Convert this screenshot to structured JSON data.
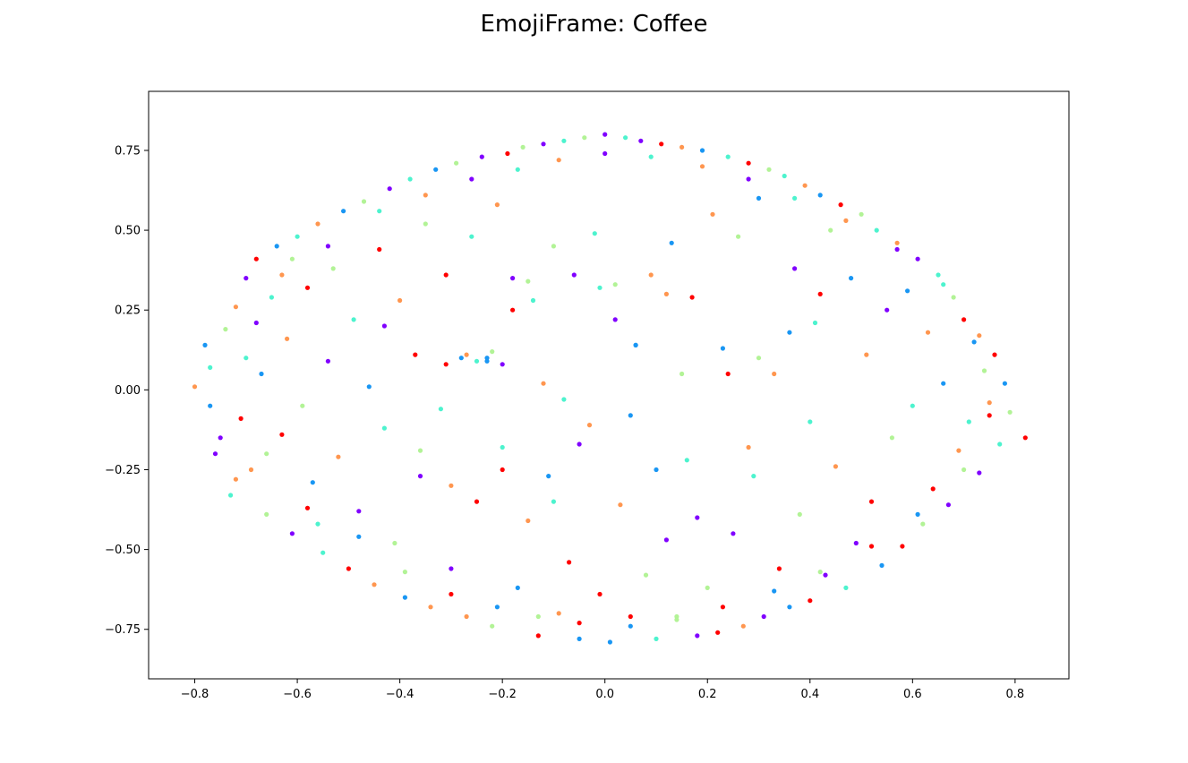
{
  "chart_data": {
    "type": "scatter",
    "title": "EmojiFrame: Coffee",
    "xlabel": "",
    "ylabel": "",
    "xlim": [
      -0.89,
      0.905
    ],
    "ylim": [
      -0.905,
      0.935
    ],
    "xticks": [
      -0.8,
      -0.6,
      -0.4,
      -0.2,
      0.0,
      0.2,
      0.4,
      0.6,
      0.8
    ],
    "xtick_labels": [
      "−0.8",
      "−0.6",
      "−0.4",
      "−0.2",
      "0.0",
      "0.2",
      "0.4",
      "0.6",
      "0.8"
    ],
    "yticks": [
      -0.75,
      -0.5,
      -0.25,
      0.0,
      0.25,
      0.5,
      0.75
    ],
    "ytick_labels": [
      "−0.75",
      "−0.50",
      "−0.25",
      "0.00",
      "0.25",
      "0.50",
      "0.75"
    ],
    "grid": false,
    "legend": "none",
    "colors": [
      "#8000ff",
      "#1996f3",
      "#4df3ce",
      "#b2f396",
      "#ff964f",
      "#ff0000"
    ],
    "points": [
      [
        -0.8,
        0.01,
        4
      ],
      [
        -0.78,
        0.14,
        1
      ],
      [
        -0.77,
        0.07,
        2
      ],
      [
        -0.76,
        -0.2,
        0
      ],
      [
        -0.74,
        0.19,
        3
      ],
      [
        -0.73,
        -0.33,
        2
      ],
      [
        -0.72,
        0.26,
        4
      ],
      [
        -0.71,
        -0.09,
        5
      ],
      [
        -0.7,
        0.35,
        0
      ],
      [
        -0.69,
        -0.25,
        4
      ],
      [
        -0.68,
        0.41,
        5
      ],
      [
        -0.67,
        0.05,
        1
      ],
      [
        -0.66,
        -0.39,
        3
      ],
      [
        -0.65,
        0.29,
        2
      ],
      [
        -0.64,
        0.45,
        1
      ],
      [
        -0.63,
        -0.14,
        5
      ],
      [
        -0.62,
        0.16,
        4
      ],
      [
        -0.61,
        -0.45,
        0
      ],
      [
        -0.6,
        0.48,
        2
      ],
      [
        -0.59,
        -0.05,
        3
      ],
      [
        -0.58,
        0.32,
        5
      ],
      [
        -0.57,
        -0.29,
        1
      ],
      [
        -0.56,
        0.52,
        4
      ],
      [
        -0.55,
        -0.51,
        2
      ],
      [
        -0.54,
        0.09,
        0
      ],
      [
        -0.53,
        0.38,
        3
      ],
      [
        -0.52,
        -0.21,
        4
      ],
      [
        -0.51,
        0.56,
        1
      ],
      [
        -0.5,
        -0.56,
        5
      ],
      [
        -0.49,
        0.22,
        2
      ],
      [
        -0.48,
        -0.38,
        0
      ],
      [
        -0.47,
        0.59,
        3
      ],
      [
        -0.46,
        0.01,
        1
      ],
      [
        -0.45,
        -0.61,
        4
      ],
      [
        -0.44,
        0.44,
        5
      ],
      [
        -0.43,
        -0.12,
        2
      ],
      [
        -0.42,
        0.63,
        0
      ],
      [
        -0.41,
        -0.48,
        3
      ],
      [
        -0.4,
        0.28,
        4
      ],
      [
        -0.39,
        -0.65,
        1
      ],
      [
        -0.38,
        0.66,
        2
      ],
      [
        -0.37,
        0.11,
        5
      ],
      [
        -0.36,
        -0.27,
        0
      ],
      [
        -0.35,
        0.52,
        3
      ],
      [
        -0.34,
        -0.68,
        4
      ],
      [
        -0.33,
        0.69,
        1
      ],
      [
        -0.32,
        -0.06,
        2
      ],
      [
        -0.31,
        0.36,
        5
      ],
      [
        -0.3,
        -0.56,
        0
      ],
      [
        -0.29,
        0.71,
        3
      ],
      [
        -0.28,
        0.1,
        1
      ],
      [
        -0.27,
        -0.71,
        4
      ],
      [
        -0.26,
        0.48,
        2
      ],
      [
        -0.25,
        -0.35,
        5
      ],
      [
        -0.24,
        0.73,
        0
      ],
      [
        -0.23,
        0.09,
        1
      ],
      [
        -0.22,
        -0.74,
        3
      ],
      [
        -0.21,
        0.58,
        4
      ],
      [
        -0.2,
        -0.18,
        2
      ],
      [
        -0.19,
        0.74,
        5
      ],
      [
        -0.18,
        0.35,
        0
      ],
      [
        -0.17,
        -0.62,
        1
      ],
      [
        -0.16,
        0.76,
        3
      ],
      [
        -0.15,
        -0.41,
        4
      ],
      [
        -0.14,
        0.28,
        2
      ],
      [
        -0.13,
        -0.77,
        5
      ],
      [
        -0.12,
        0.77,
        0
      ],
      [
        -0.11,
        -0.27,
        1
      ],
      [
        -0.1,
        0.45,
        3
      ],
      [
        -0.09,
        -0.7,
        4
      ],
      [
        -0.08,
        0.78,
        2
      ],
      [
        -0.07,
        -0.54,
        5
      ],
      [
        -0.06,
        0.36,
        0
      ],
      [
        -0.05,
        -0.78,
        1
      ],
      [
        -0.04,
        0.79,
        3
      ],
      [
        -0.03,
        -0.11,
        4
      ],
      [
        -0.02,
        0.49,
        2
      ],
      [
        -0.01,
        -0.64,
        5
      ],
      [
        0.0,
        0.8,
        0
      ],
      [
        0.01,
        -0.79,
        1
      ],
      [
        0.02,
        0.33,
        3
      ],
      [
        0.03,
        -0.36,
        4
      ],
      [
        0.04,
        0.79,
        2
      ],
      [
        0.05,
        -0.71,
        5
      ],
      [
        0.06,
        0.14,
        1
      ],
      [
        0.07,
        0.78,
        0
      ],
      [
        0.08,
        -0.58,
        3
      ],
      [
        0.09,
        0.36,
        4
      ],
      [
        0.1,
        -0.78,
        2
      ],
      [
        0.11,
        0.77,
        5
      ],
      [
        0.12,
        -0.47,
        0
      ],
      [
        0.13,
        0.46,
        1
      ],
      [
        0.14,
        -0.72,
        3
      ],
      [
        0.15,
        0.76,
        4
      ],
      [
        0.16,
        -0.22,
        2
      ],
      [
        0.17,
        0.29,
        5
      ],
      [
        0.18,
        -0.77,
        0
      ],
      [
        0.19,
        0.75,
        1
      ],
      [
        0.2,
        -0.62,
        3
      ],
      [
        0.21,
        0.55,
        4
      ],
      [
        0.22,
        -0.76,
        5
      ],
      [
        0.23,
        0.13,
        1
      ],
      [
        0.24,
        0.73,
        2
      ],
      [
        0.25,
        -0.45,
        0
      ],
      [
        0.26,
        0.48,
        3
      ],
      [
        0.27,
        -0.74,
        4
      ],
      [
        0.28,
        0.71,
        5
      ],
      [
        0.29,
        -0.27,
        2
      ],
      [
        0.3,
        0.6,
        1
      ],
      [
        0.31,
        -0.71,
        0
      ],
      [
        0.32,
        0.69,
        3
      ],
      [
        0.33,
        0.05,
        4
      ],
      [
        0.34,
        -0.56,
        5
      ],
      [
        0.35,
        0.67,
        2
      ],
      [
        0.36,
        -0.68,
        1
      ],
      [
        0.37,
        0.38,
        0
      ],
      [
        0.38,
        -0.39,
        3
      ],
      [
        0.39,
        0.64,
        4
      ],
      [
        0.4,
        -0.66,
        5
      ],
      [
        0.41,
        0.21,
        2
      ],
      [
        0.42,
        0.61,
        1
      ],
      [
        0.43,
        -0.58,
        0
      ],
      [
        0.44,
        0.5,
        3
      ],
      [
        0.45,
        -0.24,
        4
      ],
      [
        0.46,
        0.58,
        5
      ],
      [
        0.47,
        -0.62,
        2
      ],
      [
        0.48,
        0.35,
        1
      ],
      [
        0.49,
        -0.48,
        0
      ],
      [
        0.5,
        0.55,
        3
      ],
      [
        0.51,
        0.11,
        4
      ],
      [
        0.52,
        -0.35,
        5
      ],
      [
        0.53,
        0.5,
        2
      ],
      [
        0.54,
        -0.55,
        1
      ],
      [
        0.55,
        0.25,
        0
      ],
      [
        0.56,
        -0.15,
        3
      ],
      [
        0.57,
        0.46,
        4
      ],
      [
        0.58,
        -0.49,
        5
      ],
      [
        0.59,
        0.31,
        1
      ],
      [
        0.6,
        -0.05,
        2
      ],
      [
        0.61,
        0.41,
        0
      ],
      [
        0.62,
        -0.42,
        3
      ],
      [
        0.63,
        0.18,
        4
      ],
      [
        0.64,
        -0.31,
        5
      ],
      [
        0.65,
        0.36,
        2
      ],
      [
        0.66,
        0.02,
        1
      ],
      [
        0.67,
        -0.36,
        0
      ],
      [
        0.68,
        0.29,
        3
      ],
      [
        0.69,
        -0.19,
        4
      ],
      [
        0.7,
        0.22,
        5
      ],
      [
        0.71,
        -0.1,
        2
      ],
      [
        0.72,
        0.15,
        1
      ],
      [
        0.73,
        -0.26,
        0
      ],
      [
        0.74,
        0.06,
        3
      ],
      [
        0.75,
        -0.04,
        4
      ],
      [
        0.76,
        0.11,
        5
      ],
      [
        0.77,
        -0.17,
        2
      ],
      [
        0.78,
        0.02,
        1
      ],
      [
        0.79,
        -0.07,
        3
      ],
      [
        0.82,
        -0.15,
        5
      ],
      [
        -0.75,
        -0.15,
        0
      ],
      [
        -0.7,
        0.1,
        2
      ],
      [
        -0.66,
        -0.2,
        3
      ],
      [
        -0.63,
        0.36,
        4
      ],
      [
        -0.58,
        -0.37,
        5
      ],
      [
        -0.54,
        0.45,
        0
      ],
      [
        -0.48,
        -0.46,
        1
      ],
      [
        -0.44,
        0.56,
        2
      ],
      [
        -0.39,
        -0.57,
        3
      ],
      [
        -0.35,
        0.61,
        4
      ],
      [
        -0.3,
        -0.64,
        5
      ],
      [
        -0.26,
        0.66,
        0
      ],
      [
        -0.21,
        -0.68,
        1
      ],
      [
        -0.17,
        0.69,
        2
      ],
      [
        -0.13,
        -0.71,
        3
      ],
      [
        -0.09,
        0.72,
        4
      ],
      [
        -0.05,
        -0.73,
        5
      ],
      [
        0.0,
        0.74,
        0
      ],
      [
        0.05,
        -0.74,
        1
      ],
      [
        0.09,
        0.73,
        2
      ],
      [
        0.14,
        -0.71,
        3
      ],
      [
        0.19,
        0.7,
        4
      ],
      [
        0.23,
        -0.68,
        5
      ],
      [
        0.28,
        0.66,
        0
      ],
      [
        0.33,
        -0.63,
        1
      ],
      [
        0.37,
        0.6,
        2
      ],
      [
        0.42,
        -0.57,
        3
      ],
      [
        0.47,
        0.53,
        4
      ],
      [
        0.52,
        -0.49,
        5
      ],
      [
        0.57,
        0.44,
        0
      ],
      [
        0.61,
        -0.39,
        1
      ],
      [
        0.66,
        0.33,
        2
      ],
      [
        0.7,
        -0.25,
        3
      ],
      [
        0.73,
        0.17,
        4
      ],
      [
        0.75,
        -0.08,
        5
      ],
      [
        -0.77,
        -0.05,
        1
      ],
      [
        -0.72,
        -0.28,
        4
      ],
      [
        -0.68,
        0.21,
        0
      ],
      [
        -0.61,
        0.41,
        3
      ],
      [
        -0.56,
        -0.42,
        2
      ],
      [
        -0.23,
        0.1,
        1
      ],
      [
        -0.25,
        0.09,
        2
      ],
      [
        -0.22,
        0.12,
        3
      ],
      [
        -0.27,
        0.11,
        4
      ],
      [
        -0.31,
        0.08,
        5
      ],
      [
        -0.2,
        0.08,
        0
      ],
      [
        0.06,
        0.14,
        1
      ],
      [
        -0.01,
        0.32,
        2
      ],
      [
        -0.15,
        0.34,
        3
      ],
      [
        0.12,
        0.3,
        4
      ],
      [
        -0.18,
        0.25,
        5
      ],
      [
        0.02,
        0.22,
        0
      ],
      [
        0.05,
        -0.08,
        1
      ],
      [
        -0.08,
        -0.03,
        2
      ],
      [
        0.15,
        0.05,
        3
      ],
      [
        -0.12,
        0.02,
        4
      ],
      [
        0.24,
        0.05,
        5
      ],
      [
        -0.05,
        -0.17,
        0
      ],
      [
        0.1,
        -0.25,
        1
      ],
      [
        -0.1,
        -0.35,
        2
      ],
      [
        0.3,
        0.1,
        3
      ],
      [
        0.28,
        -0.18,
        4
      ],
      [
        -0.2,
        -0.25,
        5
      ],
      [
        0.18,
        -0.4,
        0
      ],
      [
        0.36,
        0.18,
        1
      ],
      [
        0.4,
        -0.1,
        2
      ],
      [
        -0.36,
        -0.19,
        3
      ],
      [
        -0.3,
        -0.3,
        4
      ],
      [
        0.42,
        0.3,
        5
      ],
      [
        -0.43,
        0.2,
        0
      ]
    ]
  }
}
